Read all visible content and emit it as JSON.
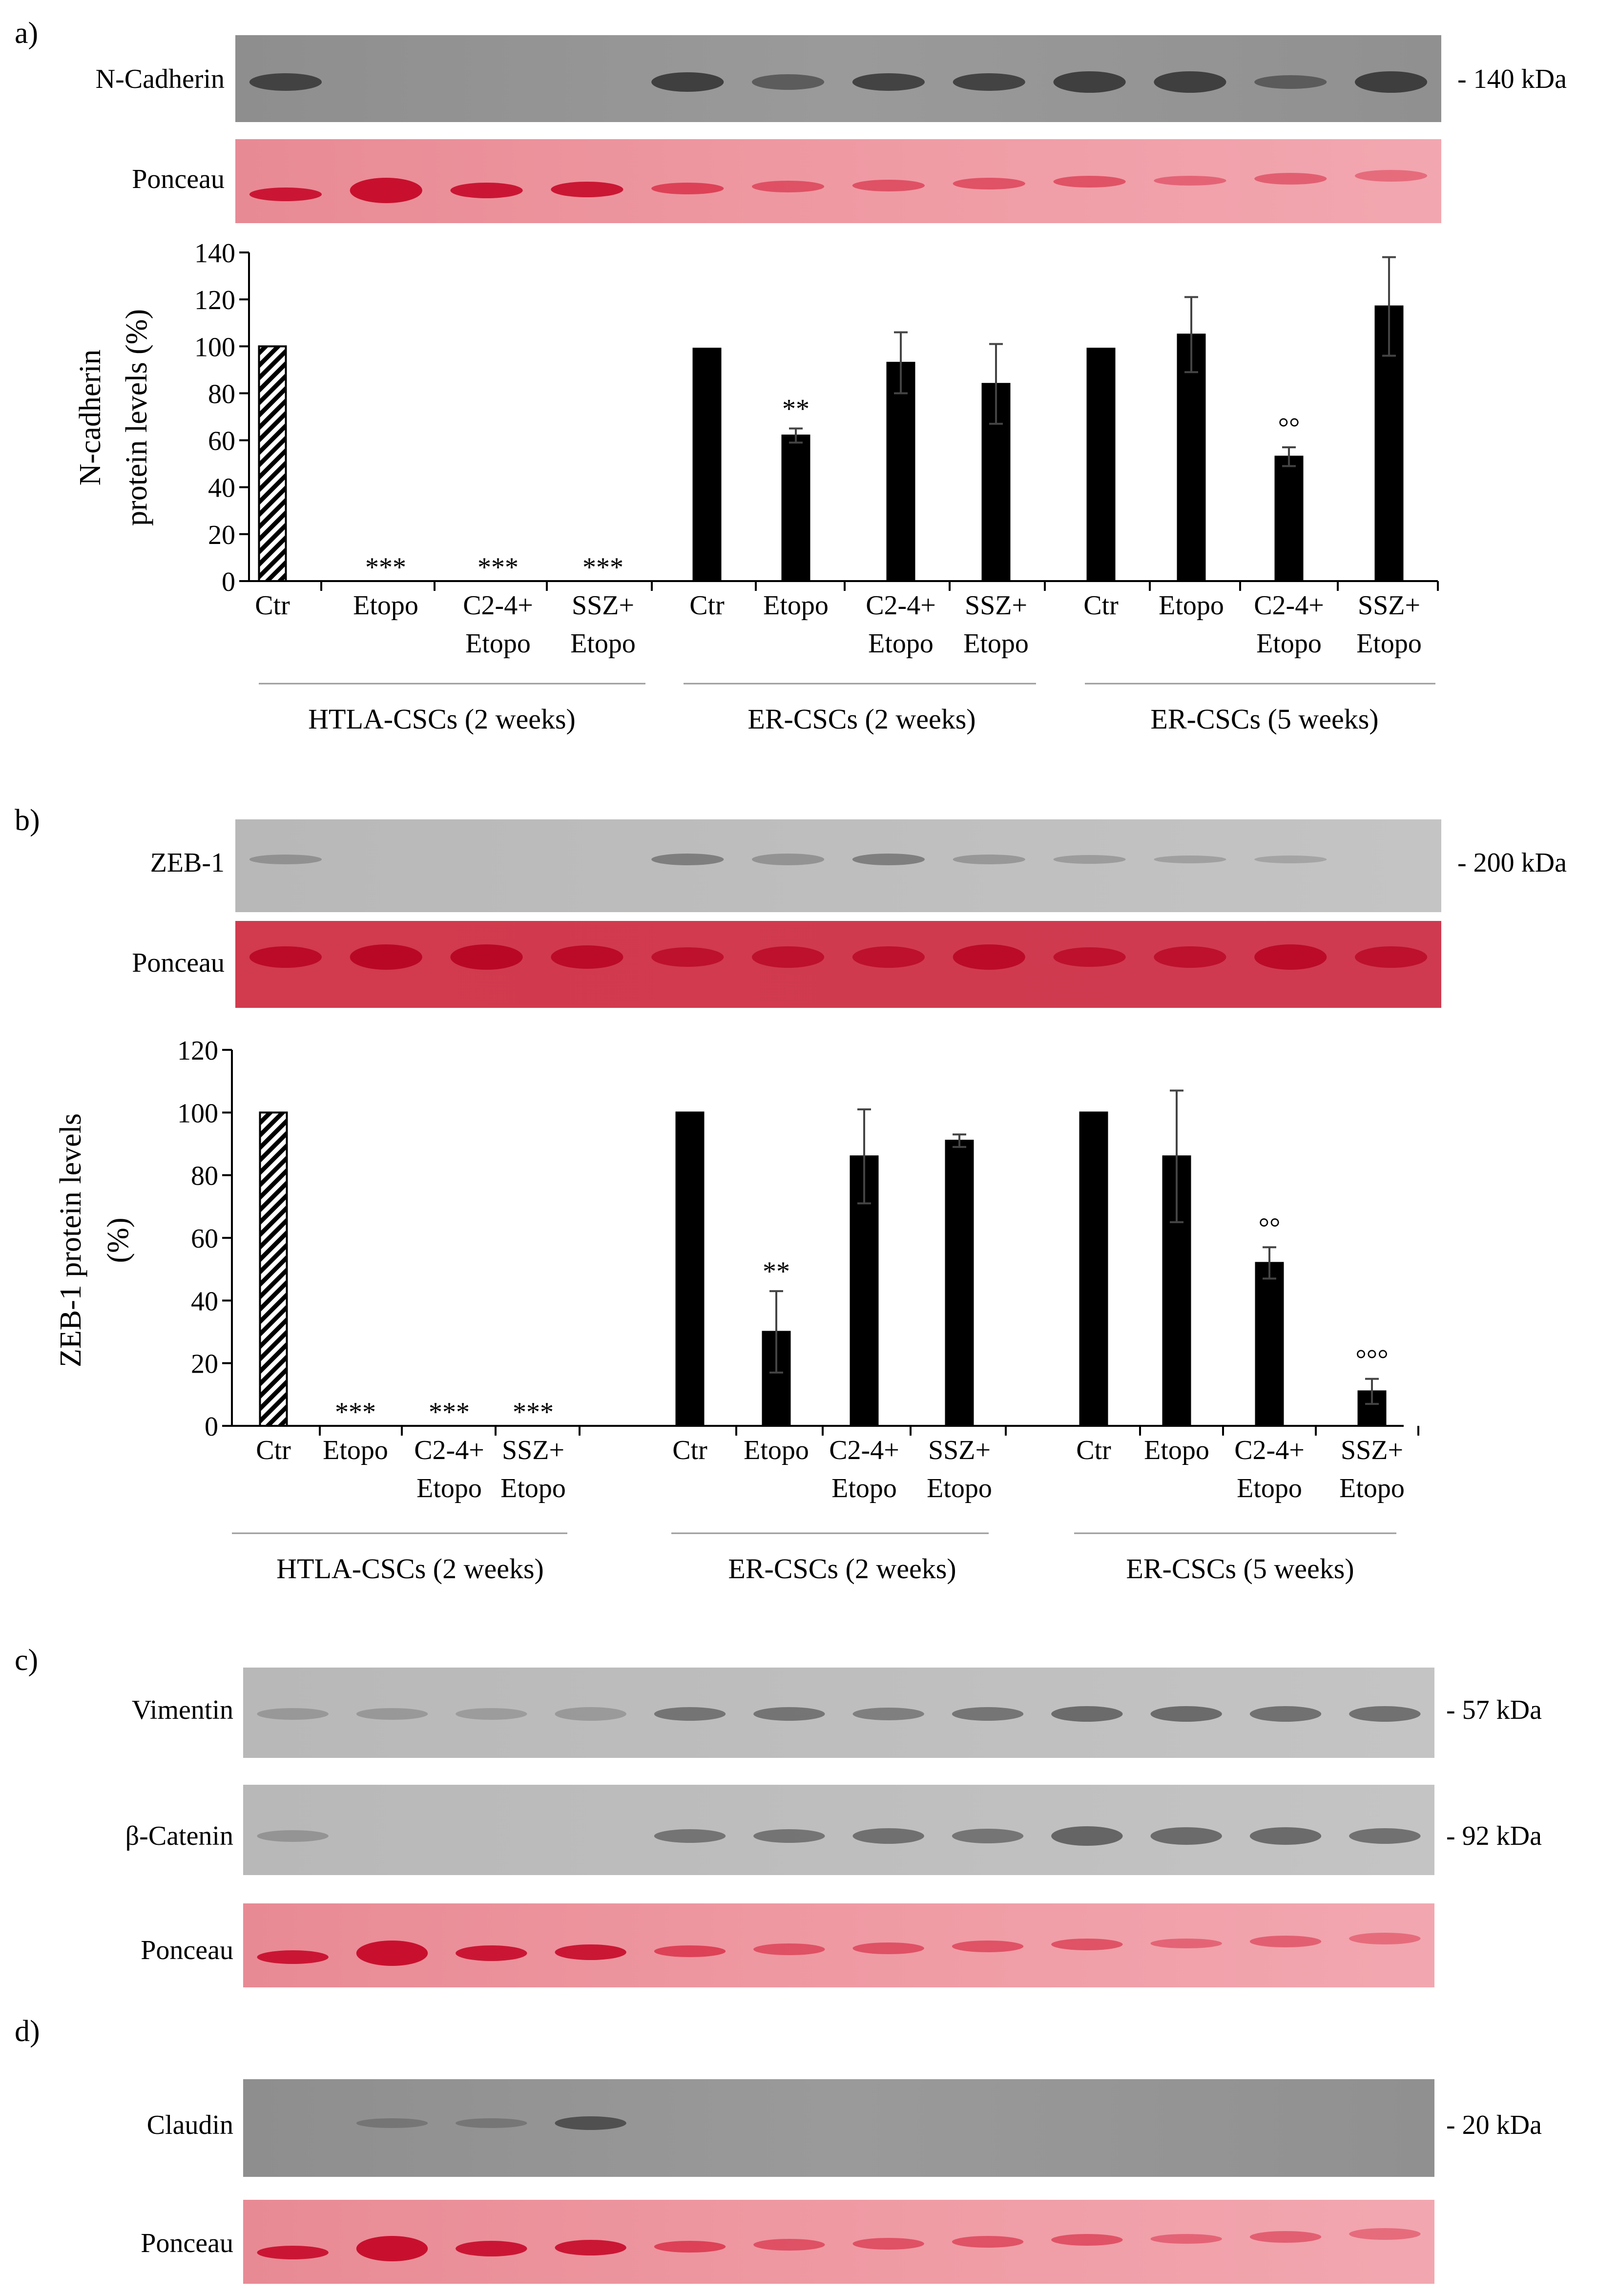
{
  "panels": {
    "a": {
      "label": "a)",
      "blot": {
        "name": "N-Cadherin",
        "kda": "- 140 kDa"
      },
      "ponceau": "Ponceau",
      "ylabel_line1": "N-cadherin",
      "ylabel_line2": "protein levels (%)",
      "groups": [
        "HTLA-CSCs (2 weeks)",
        "ER-CSCs (2 weeks)",
        "ER-CSCs (5 weeks)"
      ]
    },
    "b": {
      "label": "b)",
      "blot": {
        "name": "ZEB-1",
        "kda": "- 200 kDa"
      },
      "ponceau": "Ponceau",
      "ylabel_line1": "ZEB-1 protein levels",
      "ylabel_line2": "(%)",
      "groups": [
        "HTLA-CSCs (2 weeks)",
        "ER-CSCs (2 weeks)",
        "ER-CSCs (5 weeks)"
      ]
    },
    "c": {
      "label": "c)",
      "blots": [
        {
          "name": "Vimentin",
          "kda": "- 57 kDa"
        },
        {
          "name": "β-Catenin",
          "kda": "- 92 kDa"
        }
      ],
      "ponceau": "Ponceau"
    },
    "d": {
      "label": "d)",
      "blot": {
        "name": "Claudin",
        "kda": "- 20 kDa"
      },
      "ponceau": "Ponceau"
    }
  },
  "chart_data": [
    {
      "type": "bar",
      "panel": "a",
      "title": "",
      "ylabel": "N-cadherin protein levels (%)",
      "ylim": [
        0,
        140
      ],
      "yticks": [
        0,
        20,
        40,
        60,
        80,
        100,
        120,
        140
      ],
      "categories": [
        [
          "Ctr"
        ],
        [
          "Etopo"
        ],
        [
          "C2-4+",
          "Etopo"
        ],
        [
          "SSZ+",
          "Etopo"
        ],
        [
          "Ctr"
        ],
        [
          "Etopo"
        ],
        [
          "C2-4+",
          "Etopo"
        ],
        [
          "SSZ+",
          "Etopo"
        ],
        [
          "Ctr"
        ],
        [
          "Etopo"
        ],
        [
          "C2-4+",
          "Etopo"
        ],
        [
          "SSZ+",
          "Etopo"
        ]
      ],
      "values": [
        100,
        0,
        0,
        0,
        99,
        62,
        93,
        84,
        99,
        105,
        53,
        117
      ],
      "errors": [
        0,
        0,
        0,
        0,
        0,
        3,
        13,
        17,
        0,
        16,
        4,
        21
      ],
      "annotations": [
        "",
        "***",
        "***",
        "***",
        "",
        "**",
        "",
        "",
        "",
        "",
        "°°",
        ""
      ],
      "fills": [
        "hatch",
        "none",
        "none",
        "none",
        "black",
        "black",
        "black",
        "black",
        "black",
        "black",
        "black",
        "black"
      ]
    },
    {
      "type": "bar",
      "panel": "b",
      "title": "",
      "ylabel": "ZEB-1 protein levels (%)",
      "ylim": [
        0,
        120
      ],
      "yticks": [
        0,
        20,
        40,
        60,
        80,
        100,
        120
      ],
      "categories": [
        [
          "Ctr"
        ],
        [
          "Etopo"
        ],
        [
          "C2-4+",
          "Etopo"
        ],
        [
          "SSZ+",
          "Etopo"
        ],
        [
          "Ctr"
        ],
        [
          "Etopo"
        ],
        [
          "C2-4+",
          "Etopo"
        ],
        [
          "SSZ+",
          "Etopo"
        ],
        [
          "Ctr"
        ],
        [
          "Etopo"
        ],
        [
          "C2-4+",
          "Etopo"
        ],
        [
          "SSZ+",
          "Etopo"
        ]
      ],
      "values": [
        100,
        0,
        0,
        0,
        100,
        30,
        86,
        91,
        100,
        86,
        52,
        11
      ],
      "errors": [
        0,
        0,
        0,
        0,
        0,
        13,
        15,
        2,
        0,
        21,
        5,
        4
      ],
      "annotations": [
        "",
        "***",
        "***",
        "***",
        "",
        "**",
        "",
        "",
        "",
        "",
        "°°",
        "°°°"
      ],
      "fills": [
        "hatch",
        "none",
        "none",
        "none",
        "black",
        "black",
        "black",
        "black",
        "black",
        "black",
        "black",
        "black"
      ]
    }
  ]
}
